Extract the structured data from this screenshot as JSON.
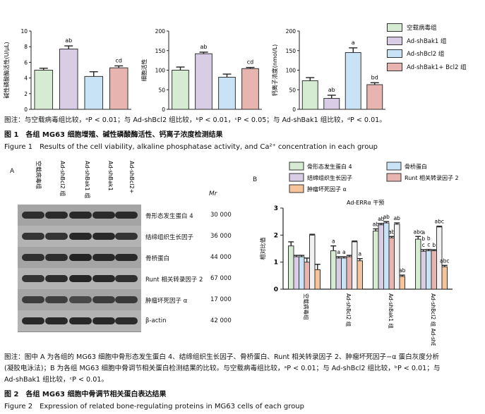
{
  "figure1": {
    "chart_data": [
      {
        "type": "bar",
        "ylabel": "碱性磷酸酶活性(U/μL)",
        "ylim": [
          0,
          10
        ],
        "yticks": [
          "0",
          "2",
          "4",
          "6",
          "8",
          "10"
        ],
        "categories": [
          "空载病毒组",
          "Ad-shBak1 组",
          "Ad-shBcl2 组",
          "Ad-shBak1+ Bcl2 组"
        ],
        "values": [
          5.0,
          7.7,
          4.2,
          5.3
        ],
        "errors": [
          0.25,
          0.4,
          0.6,
          0.25
        ],
        "sig_labels": [
          "",
          "ab",
          "",
          "cd"
        ]
      },
      {
        "type": "bar",
        "ylabel": "细胞活性",
        "ylim": [
          0,
          200
        ],
        "yticks": [
          "0",
          "50",
          "100",
          "150",
          "200"
        ],
        "categories": [
          "空载病毒组",
          "Ad-shBak1 组",
          "Ad-shBcl2 组",
          "Ad-shBak1+ Bcl2 组"
        ],
        "values": [
          100,
          142,
          82,
          104
        ],
        "errors": [
          8,
          4,
          8,
          3
        ],
        "sig_labels": [
          "",
          "ab",
          "",
          "cd"
        ]
      },
      {
        "type": "bar",
        "ylabel": "钙离子浓度(nmol/L)",
        "ylim": [
          0,
          200
        ],
        "yticks": [
          "0",
          "50",
          "100",
          "150",
          "200"
        ],
        "categories": [
          "空载病毒组",
          "Ad-shBak1 组",
          "Ad-shBcl2 组",
          "Ad-shBak1+ Bcl2 组"
        ],
        "values": [
          73,
          28,
          145,
          63
        ],
        "errors": [
          8,
          8,
          12,
          5
        ],
        "sig_labels": [
          "",
          "ab",
          "a",
          "bd"
        ]
      }
    ],
    "colors": [
      "#d6ecd2",
      "#d9cde6",
      "#c9e3f6",
      "#e8b4b0"
    ],
    "legend": [
      "空载病毒组",
      "Ad-shBak1 组",
      "Ad-shBcl2 组",
      "Ad-shBak1+ Bcl2 组"
    ],
    "note": "图注：与空载病毒组比较，ᵃP < 0.01；与 Ad-shBcl2 组比较，ᵇP < 0.01，ᶜP < 0.05；与 Ad-shBak1 组比较，ᵈP < 0.01。",
    "title_cn": "图 1　各组 MG63 细胞增殖、碱性磷酸酶活性、钙离子浓度检测结果",
    "title_en": "Figure 1　Results of the cell viability, alkaline phosphatase activity, and Ca²⁺ concentration in each group"
  },
  "figure2": {
    "panel_a": {
      "label": "A",
      "columns": [
        "空载病毒组",
        "Ad-shBcl2 组",
        "Ad-shBak1 组",
        "Ad-shBak1",
        "Ad-shBcl2+"
      ],
      "mr_label": "Mr",
      "bands": [
        {
          "name": "骨形态发生蛋白 4",
          "mw": "30 000"
        },
        {
          "name": "结缔组织生长因子",
          "mw": "36 000"
        },
        {
          "name": "骨桥蛋白",
          "mw": "44 000"
        },
        {
          "name": "Runt 相关转录因子 2",
          "mw": "67 000"
        },
        {
          "name": "肿瘤坏死因子 α",
          "mw": "17 000"
        },
        {
          "name": "β-actin",
          "mw": "42 000"
        }
      ]
    },
    "panel_b": {
      "label": "B",
      "chart_data": {
        "type": "bar",
        "title": "Ad-ERRα 干预",
        "ylabel": "相对比值",
        "ylim": [
          0,
          3
        ],
        "yticks": [
          "0",
          "1",
          "2",
          "3"
        ],
        "categories": [
          "空载病毒组",
          "Ad-shBcl2 组",
          "Ad-shBak1 组",
          "Ad-shBcl2 组 Ad-shBak1&Ad-"
        ],
        "series": [
          {
            "name": "骨形态发生蛋白 4",
            "color": "#d6ecd2",
            "values": [
              1.6,
              1.42,
              2.15,
              1.85
            ],
            "errors": [
              0.15,
              0.18,
              0.08,
              0.1
            ]
          },
          {
            "name": "结缔组织生长因子",
            "color": "#d9cde6",
            "values": [
              1.2,
              1.15,
              2.38,
              1.4
            ],
            "errors": [
              0.05,
              0.05,
              0.05,
              0.06
            ]
          },
          {
            "name": "骨桥蛋白",
            "color": "#c9e3f6",
            "values": [
              1.2,
              1.15,
              2.45,
              1.42
            ],
            "errors": [
              0.05,
              0.05,
              0.05,
              0.05
            ]
          },
          {
            "name": "Runt 相关转录因子 2",
            "color": "#e8b4b0",
            "values": [
              1.0,
              1.2,
              1.9,
              1.42
            ],
            "errors": [
              0.15,
              0.05,
              0.05,
              0.04
            ]
          },
          {
            "name": "",
            "color": "#f1f1f1",
            "values": [
              2.0,
              1.75,
              2.4,
              2.3
            ],
            "errors": [
              0.03,
              0.03,
              0.05,
              0.03
            ]
          },
          {
            "name": "肿瘤坏死因子 α",
            "color": "#f6c39a",
            "values": [
              0.72,
              1.05,
              0.47,
              0.83
            ],
            "errors": [
              0.2,
              0.08,
              0.05,
              0.05
            ]
          }
        ],
        "sig_labels": [
          [
            "",
            "",
            "",
            "",
            "",
            ""
          ],
          [
            "a",
            "a",
            "a",
            "",
            "",
            "a"
          ],
          [
            "ab",
            "ab",
            "ab",
            "ab",
            "ab",
            "ab"
          ],
          [
            "abc",
            "a b c",
            "b c",
            "b",
            "abc",
            "abc"
          ]
        ]
      }
    },
    "legend": [
      {
        "name": "骨形态发生蛋白 4",
        "color": "#d6ecd2"
      },
      {
        "name": "骨桥蛋白",
        "color": "#c9e3f6"
      },
      {
        "name": "结缔组织生长因子",
        "color": "#d9cde6"
      },
      {
        "name": "Runt 相关转录因子 2",
        "color": "#e8b4b0"
      },
      {
        "name": "肿瘤坏死因子 α",
        "color": "#f6c39a"
      }
    ],
    "note_line1": "图注：图中 A 为各组的 MG63 细胞中骨形态发生蛋白 4、结缔组织生长因子、骨桥蛋白、Runt 相关转录因子 2、肿瘤坏死因子−α 蛋白灰度分析",
    "note_line2": "(凝胶电泳法)；B 为各组 MG63 细胞中骨调节相关蛋白检测结果的比较。与空载病毒组比较，ᵃP < 0.01；与 Ad-shBcl2 组比较，ᵇP < 0.01；与",
    "note_line3": "Ad-shBak1 组比较，ᶜP < 0.01。",
    "title_cn": "图 2　各组 MG63 细胞中骨调节相关蛋白表达结果",
    "title_en": "Figure 2　Expression of related bone-regulating proteins in MG63 cells of each group"
  }
}
